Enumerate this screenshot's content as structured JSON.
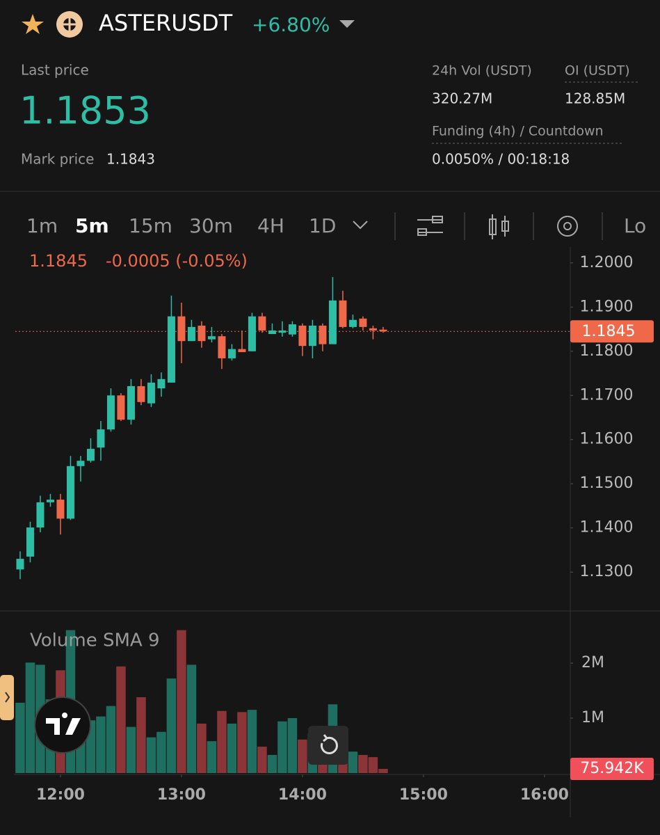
{
  "header": {
    "symbol": "ASTERUSDT",
    "change": "+6.80%",
    "last_price_label": "Last price",
    "last_price": "1.1853",
    "mark_price_label": "Mark price",
    "mark_price": "1.1843",
    "vol_label": "24h Vol (USDT)",
    "vol": "320.27M",
    "oi_label": "OI (USDT)",
    "oi": "128.85M",
    "funding_label": "Funding (4h) / Countdown",
    "funding": "0.0050%  /  00:18:18"
  },
  "toolbar": {
    "intervals": [
      "1m",
      "5m",
      "15m",
      "30m",
      "4H",
      "1D"
    ],
    "active": 1,
    "more": "Lo"
  },
  "chart_data": {
    "type": "candlestick",
    "change": "-0.0005 (-0.05%)",
    "last_price": 1.1845,
    "x": [
      700,
      705,
      710,
      715,
      720,
      725,
      730,
      735,
      740,
      745,
      750,
      755,
      760,
      765,
      770,
      775,
      780,
      785,
      790,
      795,
      800,
      805,
      810,
      815,
      820,
      825,
      830,
      835,
      840,
      845,
      850,
      855,
      860,
      865,
      870,
      875,
      880
    ],
    "open": [
      1.1306,
      1.1335,
      1.1401,
      1.1458,
      1.1464,
      1.1421,
      1.154,
      1.1552,
      1.1582,
      1.1623,
      1.17,
      1.1645,
      1.1721,
      1.1682,
      1.1716,
      1.1729,
      1.1879,
      1.1823,
      1.1858,
      1.1827,
      1.1834,
      1.1784,
      1.1805,
      1.18,
      1.1879,
      1.1839,
      1.1842,
      1.1838,
      1.1858,
      1.1812,
      1.1858,
      1.1816,
      1.1915,
      1.1855,
      1.1874,
      1.1852,
      1.1849
    ],
    "high": [
      1.1347,
      1.1414,
      1.1473,
      1.1477,
      1.1477,
      1.1563,
      1.1563,
      1.1603,
      1.1642,
      1.1716,
      1.1705,
      1.1737,
      1.1737,
      1.1748,
      1.1752,
      1.1926,
      1.191,
      1.1871,
      1.1868,
      1.1855,
      1.1839,
      1.1816,
      1.1847,
      1.1887,
      1.1887,
      1.1863,
      1.1868,
      1.1868,
      1.1863,
      1.1871,
      1.1863,
      1.1968,
      1.1937,
      1.1883,
      1.1879,
      1.1858,
      1.1855
    ],
    "low": [
      1.1284,
      1.1322,
      1.139,
      1.1448,
      1.1385,
      1.1418,
      1.1505,
      1.1548,
      1.1552,
      1.1618,
      1.1642,
      1.1634,
      1.1678,
      1.1674,
      1.1697,
      1.1729,
      1.1773,
      1.1823,
      1.1808,
      1.182,
      1.176,
      1.1779,
      1.1798,
      1.18,
      1.1842,
      1.1839,
      1.1833,
      1.1833,
      1.1789,
      1.1784,
      1.18,
      1.1816,
      1.1852,
      1.1852,
      1.1847,
      1.1827,
      1.1842
    ],
    "close": [
      1.133,
      1.1401,
      1.1458,
      1.1464,
      1.1421,
      1.154,
      1.1552,
      1.1579,
      1.1623,
      1.17,
      1.1645,
      1.1721,
      1.1685,
      1.1729,
      1.1737,
      1.1879,
      1.1823,
      1.1855,
      1.1823,
      1.1834,
      1.1784,
      1.1805,
      1.1798,
      1.1879,
      1.1847,
      1.1847,
      1.1847,
      1.1861,
      1.1812,
      1.1858,
      1.1816,
      1.1915,
      1.1855,
      1.1871,
      1.1855,
      1.1847,
      1.1845
    ],
    "up_color": "#2ebda5",
    "down_color": "#f0684a",
    "xlim": [
      697.6,
      972.8
    ],
    "xticks": [
      {
        "value": 720,
        "label": "12:00"
      },
      {
        "value": 780,
        "label": "13:00"
      },
      {
        "value": 840,
        "label": "14:00"
      },
      {
        "value": 900,
        "label": "15:00"
      },
      {
        "value": 960,
        "label": "16:00"
      }
    ],
    "ylim": [
      1.1212,
      1.2036
    ],
    "yticks": [
      {
        "value": 1.13,
        "label": "1.1300"
      },
      {
        "value": 1.14,
        "label": "1.1400"
      },
      {
        "value": 1.15,
        "label": "1.1500"
      },
      {
        "value": 1.16,
        "label": "1.1600"
      },
      {
        "value": 1.17,
        "label": "1.1700"
      },
      {
        "value": 1.18,
        "label": "1.1800"
      },
      {
        "value": 1.19,
        "label": "1.1900"
      },
      {
        "value": 1.2,
        "label": "1.2000"
      }
    ],
    "volume": {
      "title": "Volume SMA 9",
      "values": [
        1280000,
        2010000,
        1970000,
        1340000,
        1870000,
        2600000,
        1090000,
        960000,
        1030000,
        1220000,
        1940000,
        840000,
        1380000,
        650000,
        750000,
        1720000,
        2600000,
        1970000,
        900000,
        580000,
        1130000,
        900000,
        1110000,
        1150000,
        480000,
        330000,
        940000,
        1000000,
        610000,
        710000,
        650000,
        1250000,
        520000,
        390000,
        330000,
        290000,
        75942
      ],
      "last_value_label": "75.942K",
      "up_color": "#1f6f60",
      "down_color": "#8c3538",
      "ylim": [
        0,
        2924000
      ],
      "yticks": [
        {
          "value": 1000000,
          "label": "1M"
        },
        {
          "value": 2000000,
          "label": "2M"
        }
      ]
    }
  }
}
